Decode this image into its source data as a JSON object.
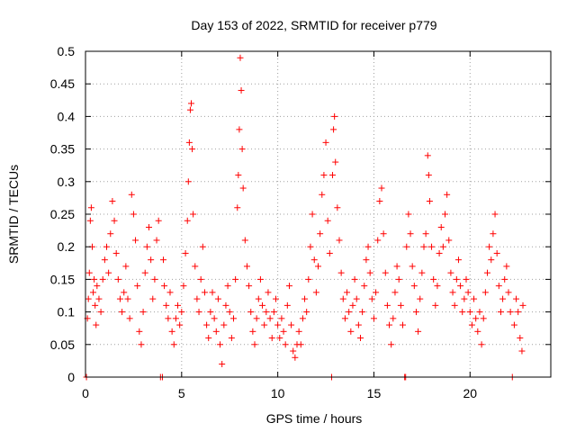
{
  "chart_data": {
    "type": "scatter",
    "title": "Day 153 of 2022, SRMTID for receiver p779",
    "xlabel": "GPS time / hours",
    "ylabel": "SRMTID / TECUs",
    "xlim": [
      0,
      24.2
    ],
    "ylim": [
      0,
      0.5
    ],
    "x_ticks": [
      0,
      5,
      10,
      15,
      20
    ],
    "x_tick_labels": [
      "0",
      "5",
      "10",
      "15",
      "20"
    ],
    "y_ticks": [
      0,
      0.05,
      0.1,
      0.15,
      0.2,
      0.25,
      0.3,
      0.35,
      0.4,
      0.45,
      0.5
    ],
    "y_tick_labels": [
      "0",
      "0.05",
      "0.1",
      "0.15",
      "0.2",
      "0.25",
      "0.3",
      "0.35",
      "0.4",
      "0.45",
      "0.5"
    ],
    "grid": true,
    "marker": "+",
    "color": "#ff0000",
    "series": [
      {
        "name": "SRMTID",
        "points": [
          [
            0.05,
            0.0
          ],
          [
            0.1,
            0.09
          ],
          [
            0.15,
            0.12
          ],
          [
            0.2,
            0.16
          ],
          [
            0.25,
            0.24
          ],
          [
            0.3,
            0.26
          ],
          [
            0.35,
            0.2
          ],
          [
            0.4,
            0.13
          ],
          [
            0.45,
            0.15
          ],
          [
            0.5,
            0.11
          ],
          [
            0.55,
            0.08
          ],
          [
            0.6,
            0.14
          ],
          [
            0.7,
            0.12
          ],
          [
            0.8,
            0.1
          ],
          [
            0.9,
            0.15
          ],
          [
            1.0,
            0.18
          ],
          [
            1.1,
            0.2
          ],
          [
            1.2,
            0.16
          ],
          [
            1.3,
            0.22
          ],
          [
            1.4,
            0.27
          ],
          [
            1.5,
            0.24
          ],
          [
            1.6,
            0.19
          ],
          [
            1.7,
            0.15
          ],
          [
            1.8,
            0.12
          ],
          [
            1.9,
            0.1
          ],
          [
            2.0,
            0.13
          ],
          [
            2.1,
            0.17
          ],
          [
            2.2,
            0.12
          ],
          [
            2.3,
            0.09
          ],
          [
            2.4,
            0.28
          ],
          [
            2.5,
            0.25
          ],
          [
            2.6,
            0.21
          ],
          [
            2.7,
            0.14
          ],
          [
            2.8,
            0.07
          ],
          [
            2.9,
            0.05
          ],
          [
            3.0,
            0.1
          ],
          [
            3.1,
            0.16
          ],
          [
            3.2,
            0.2
          ],
          [
            3.3,
            0.23
          ],
          [
            3.4,
            0.18
          ],
          [
            3.5,
            0.12
          ],
          [
            3.6,
            0.15
          ],
          [
            3.7,
            0.21
          ],
          [
            3.8,
            0.24
          ],
          [
            3.9,
            0.0
          ],
          [
            4.0,
            0.0
          ],
          [
            4.05,
            0.18
          ],
          [
            4.1,
            0.14
          ],
          [
            4.2,
            0.11
          ],
          [
            4.3,
            0.09
          ],
          [
            4.4,
            0.13
          ],
          [
            4.5,
            0.07
          ],
          [
            4.6,
            0.05
          ],
          [
            4.7,
            0.09
          ],
          [
            4.8,
            0.11
          ],
          [
            4.9,
            0.08
          ],
          [
            5.0,
            0.1
          ],
          [
            5.1,
            0.14
          ],
          [
            5.2,
            0.19
          ],
          [
            5.3,
            0.24
          ],
          [
            5.35,
            0.3
          ],
          [
            5.4,
            0.36
          ],
          [
            5.45,
            0.41
          ],
          [
            5.5,
            0.42
          ],
          [
            5.55,
            0.35
          ],
          [
            5.6,
            0.25
          ],
          [
            5.7,
            0.17
          ],
          [
            5.8,
            0.12
          ],
          [
            5.9,
            0.1
          ],
          [
            6.0,
            0.15
          ],
          [
            6.1,
            0.2
          ],
          [
            6.2,
            0.13
          ],
          [
            6.3,
            0.08
          ],
          [
            6.4,
            0.06
          ],
          [
            6.5,
            0.1
          ],
          [
            6.6,
            0.13
          ],
          [
            6.7,
            0.09
          ],
          [
            6.8,
            0.07
          ],
          [
            6.9,
            0.12
          ],
          [
            7.0,
            0.05
          ],
          [
            7.1,
            0.02
          ],
          [
            7.2,
            0.08
          ],
          [
            7.3,
            0.11
          ],
          [
            7.4,
            0.14
          ],
          [
            7.5,
            0.1
          ],
          [
            7.6,
            0.06
          ],
          [
            7.7,
            0.09
          ],
          [
            7.8,
            0.15
          ],
          [
            7.9,
            0.26
          ],
          [
            7.95,
            0.31
          ],
          [
            8.0,
            0.38
          ],
          [
            8.05,
            0.49
          ],
          [
            8.1,
            0.44
          ],
          [
            8.15,
            0.35
          ],
          [
            8.2,
            0.29
          ],
          [
            8.3,
            0.21
          ],
          [
            8.4,
            0.17
          ],
          [
            8.5,
            0.14
          ],
          [
            8.6,
            0.1
          ],
          [
            8.7,
            0.07
          ],
          [
            8.8,
            0.05
          ],
          [
            8.9,
            0.09
          ],
          [
            9.0,
            0.12
          ],
          [
            9.1,
            0.15
          ],
          [
            9.2,
            0.11
          ],
          [
            9.3,
            0.08
          ],
          [
            9.4,
            0.1
          ],
          [
            9.5,
            0.13
          ],
          [
            9.6,
            0.09
          ],
          [
            9.7,
            0.06
          ],
          [
            9.8,
            0.1
          ],
          [
            9.9,
            0.12
          ],
          [
            10.0,
            0.08
          ],
          [
            10.1,
            0.06
          ],
          [
            10.2,
            0.09
          ],
          [
            10.3,
            0.07
          ],
          [
            10.4,
            0.05
          ],
          [
            10.5,
            0.11
          ],
          [
            10.6,
            0.14
          ],
          [
            10.7,
            0.08
          ],
          [
            10.8,
            0.04
          ],
          [
            10.9,
            0.03
          ],
          [
            11.0,
            0.05
          ],
          [
            11.1,
            0.07
          ],
          [
            11.2,
            0.05
          ],
          [
            11.3,
            0.09
          ],
          [
            11.4,
            0.12
          ],
          [
            11.5,
            0.1
          ],
          [
            11.6,
            0.15
          ],
          [
            11.7,
            0.2
          ],
          [
            11.8,
            0.25
          ],
          [
            11.9,
            0.18
          ],
          [
            12.0,
            0.13
          ],
          [
            12.1,
            0.17
          ],
          [
            12.2,
            0.22
          ],
          [
            12.3,
            0.28
          ],
          [
            12.4,
            0.31
          ],
          [
            12.5,
            0.36
          ],
          [
            12.6,
            0.24
          ],
          [
            12.7,
            0.19
          ],
          [
            12.8,
            0.0
          ],
          [
            12.85,
            0.31
          ],
          [
            12.9,
            0.38
          ],
          [
            12.95,
            0.4
          ],
          [
            13.0,
            0.33
          ],
          [
            13.1,
            0.26
          ],
          [
            13.2,
            0.21
          ],
          [
            13.3,
            0.16
          ],
          [
            13.4,
            0.12
          ],
          [
            13.5,
            0.09
          ],
          [
            13.6,
            0.13
          ],
          [
            13.7,
            0.1
          ],
          [
            13.8,
            0.07
          ],
          [
            13.9,
            0.11
          ],
          [
            14.0,
            0.15
          ],
          [
            14.1,
            0.12
          ],
          [
            14.2,
            0.08
          ],
          [
            14.3,
            0.06
          ],
          [
            14.4,
            0.1
          ],
          [
            14.5,
            0.14
          ],
          [
            14.6,
            0.18
          ],
          [
            14.7,
            0.2
          ],
          [
            14.8,
            0.16
          ],
          [
            14.9,
            0.12
          ],
          [
            15.0,
            0.09
          ],
          [
            15.1,
            0.13
          ],
          [
            15.2,
            0.21
          ],
          [
            15.3,
            0.27
          ],
          [
            15.4,
            0.29
          ],
          [
            15.5,
            0.22
          ],
          [
            15.6,
            0.16
          ],
          [
            15.7,
            0.11
          ],
          [
            15.8,
            0.08
          ],
          [
            15.9,
            0.05
          ],
          [
            16.0,
            0.09
          ],
          [
            16.1,
            0.13
          ],
          [
            16.2,
            0.17
          ],
          [
            16.3,
            0.15
          ],
          [
            16.4,
            0.11
          ],
          [
            16.5,
            0.08
          ],
          [
            16.6,
            0.0
          ],
          [
            16.65,
            0.0
          ],
          [
            16.7,
            0.2
          ],
          [
            16.8,
            0.25
          ],
          [
            16.9,
            0.22
          ],
          [
            17.0,
            0.17
          ],
          [
            17.1,
            0.14
          ],
          [
            17.2,
            0.1
          ],
          [
            17.3,
            0.07
          ],
          [
            17.4,
            0.12
          ],
          [
            17.5,
            0.16
          ],
          [
            17.6,
            0.2
          ],
          [
            17.7,
            0.22
          ],
          [
            17.8,
            0.34
          ],
          [
            17.85,
            0.31
          ],
          [
            17.9,
            0.27
          ],
          [
            18.0,
            0.2
          ],
          [
            18.1,
            0.15
          ],
          [
            18.2,
            0.11
          ],
          [
            18.3,
            0.14
          ],
          [
            18.4,
            0.19
          ],
          [
            18.5,
            0.23
          ],
          [
            18.6,
            0.2
          ],
          [
            18.7,
            0.25
          ],
          [
            18.8,
            0.28
          ],
          [
            18.9,
            0.21
          ],
          [
            19.0,
            0.16
          ],
          [
            19.1,
            0.13
          ],
          [
            19.2,
            0.11
          ],
          [
            19.3,
            0.15
          ],
          [
            19.4,
            0.18
          ],
          [
            19.5,
            0.14
          ],
          [
            19.6,
            0.1
          ],
          [
            19.7,
            0.12
          ],
          [
            19.8,
            0.15
          ],
          [
            19.9,
            0.13
          ],
          [
            20.0,
            0.1
          ],
          [
            20.1,
            0.08
          ],
          [
            20.2,
            0.12
          ],
          [
            20.3,
            0.09
          ],
          [
            20.4,
            0.07
          ],
          [
            20.5,
            0.1
          ],
          [
            20.6,
            0.05
          ],
          [
            20.7,
            0.09
          ],
          [
            20.8,
            0.13
          ],
          [
            20.9,
            0.16
          ],
          [
            21.0,
            0.2
          ],
          [
            21.1,
            0.18
          ],
          [
            21.2,
            0.22
          ],
          [
            21.3,
            0.25
          ],
          [
            21.4,
            0.19
          ],
          [
            21.5,
            0.14
          ],
          [
            21.6,
            0.1
          ],
          [
            21.7,
            0.12
          ],
          [
            21.8,
            0.15
          ],
          [
            21.9,
            0.17
          ],
          [
            22.0,
            0.13
          ],
          [
            22.1,
            0.1
          ],
          [
            22.2,
            0.0
          ],
          [
            22.3,
            0.08
          ],
          [
            22.4,
            0.12
          ],
          [
            22.5,
            0.1
          ],
          [
            22.6,
            0.06
          ],
          [
            22.7,
            0.04
          ],
          [
            22.75,
            0.11
          ]
        ]
      }
    ]
  }
}
